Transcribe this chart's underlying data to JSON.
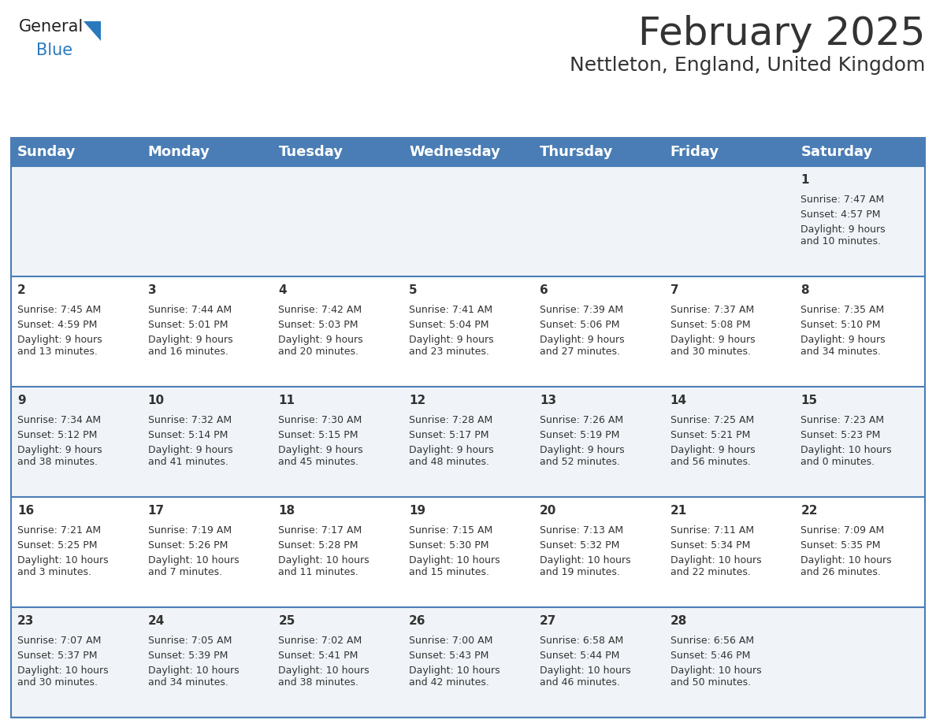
{
  "title": "February 2025",
  "subtitle": "Nettleton, England, United Kingdom",
  "header_bg": "#4A7DB5",
  "header_text_color": "#FFFFFF",
  "days_of_week": [
    "Sunday",
    "Monday",
    "Tuesday",
    "Wednesday",
    "Thursday",
    "Friday",
    "Saturday"
  ],
  "bg_color": "#FFFFFF",
  "row_alt_bg": "#F0F4F8",
  "border_color": "#4A7DB5",
  "text_color": "#333333",
  "num_weeks": 5,
  "weeks": [
    [
      {
        "day": "",
        "sunrise": "",
        "sunset": "",
        "daylight": ""
      },
      {
        "day": "",
        "sunrise": "",
        "sunset": "",
        "daylight": ""
      },
      {
        "day": "",
        "sunrise": "",
        "sunset": "",
        "daylight": ""
      },
      {
        "day": "",
        "sunrise": "",
        "sunset": "",
        "daylight": ""
      },
      {
        "day": "",
        "sunrise": "",
        "sunset": "",
        "daylight": ""
      },
      {
        "day": "",
        "sunrise": "",
        "sunset": "",
        "daylight": ""
      },
      {
        "day": "1",
        "sunrise": "7:47 AM",
        "sunset": "4:57 PM",
        "daylight": "9 hours\nand 10 minutes."
      }
    ],
    [
      {
        "day": "2",
        "sunrise": "7:45 AM",
        "sunset": "4:59 PM",
        "daylight": "9 hours\nand 13 minutes."
      },
      {
        "day": "3",
        "sunrise": "7:44 AM",
        "sunset": "5:01 PM",
        "daylight": "9 hours\nand 16 minutes."
      },
      {
        "day": "4",
        "sunrise": "7:42 AM",
        "sunset": "5:03 PM",
        "daylight": "9 hours\nand 20 minutes."
      },
      {
        "day": "5",
        "sunrise": "7:41 AM",
        "sunset": "5:04 PM",
        "daylight": "9 hours\nand 23 minutes."
      },
      {
        "day": "6",
        "sunrise": "7:39 AM",
        "sunset": "5:06 PM",
        "daylight": "9 hours\nand 27 minutes."
      },
      {
        "day": "7",
        "sunrise": "7:37 AM",
        "sunset": "5:08 PM",
        "daylight": "9 hours\nand 30 minutes."
      },
      {
        "day": "8",
        "sunrise": "7:35 AM",
        "sunset": "5:10 PM",
        "daylight": "9 hours\nand 34 minutes."
      }
    ],
    [
      {
        "day": "9",
        "sunrise": "7:34 AM",
        "sunset": "5:12 PM",
        "daylight": "9 hours\nand 38 minutes."
      },
      {
        "day": "10",
        "sunrise": "7:32 AM",
        "sunset": "5:14 PM",
        "daylight": "9 hours\nand 41 minutes."
      },
      {
        "day": "11",
        "sunrise": "7:30 AM",
        "sunset": "5:15 PM",
        "daylight": "9 hours\nand 45 minutes."
      },
      {
        "day": "12",
        "sunrise": "7:28 AM",
        "sunset": "5:17 PM",
        "daylight": "9 hours\nand 48 minutes."
      },
      {
        "day": "13",
        "sunrise": "7:26 AM",
        "sunset": "5:19 PM",
        "daylight": "9 hours\nand 52 minutes."
      },
      {
        "day": "14",
        "sunrise": "7:25 AM",
        "sunset": "5:21 PM",
        "daylight": "9 hours\nand 56 minutes."
      },
      {
        "day": "15",
        "sunrise": "7:23 AM",
        "sunset": "5:23 PM",
        "daylight": "10 hours\nand 0 minutes."
      }
    ],
    [
      {
        "day": "16",
        "sunrise": "7:21 AM",
        "sunset": "5:25 PM",
        "daylight": "10 hours\nand 3 minutes."
      },
      {
        "day": "17",
        "sunrise": "7:19 AM",
        "sunset": "5:26 PM",
        "daylight": "10 hours\nand 7 minutes."
      },
      {
        "day": "18",
        "sunrise": "7:17 AM",
        "sunset": "5:28 PM",
        "daylight": "10 hours\nand 11 minutes."
      },
      {
        "day": "19",
        "sunrise": "7:15 AM",
        "sunset": "5:30 PM",
        "daylight": "10 hours\nand 15 minutes."
      },
      {
        "day": "20",
        "sunrise": "7:13 AM",
        "sunset": "5:32 PM",
        "daylight": "10 hours\nand 19 minutes."
      },
      {
        "day": "21",
        "sunrise": "7:11 AM",
        "sunset": "5:34 PM",
        "daylight": "10 hours\nand 22 minutes."
      },
      {
        "day": "22",
        "sunrise": "7:09 AM",
        "sunset": "5:35 PM",
        "daylight": "10 hours\nand 26 minutes."
      }
    ],
    [
      {
        "day": "23",
        "sunrise": "7:07 AM",
        "sunset": "5:37 PM",
        "daylight": "10 hours\nand 30 minutes."
      },
      {
        "day": "24",
        "sunrise": "7:05 AM",
        "sunset": "5:39 PM",
        "daylight": "10 hours\nand 34 minutes."
      },
      {
        "day": "25",
        "sunrise": "7:02 AM",
        "sunset": "5:41 PM",
        "daylight": "10 hours\nand 38 minutes."
      },
      {
        "day": "26",
        "sunrise": "7:00 AM",
        "sunset": "5:43 PM",
        "daylight": "10 hours\nand 42 minutes."
      },
      {
        "day": "27",
        "sunrise": "6:58 AM",
        "sunset": "5:44 PM",
        "daylight": "10 hours\nand 46 minutes."
      },
      {
        "day": "28",
        "sunrise": "6:56 AM",
        "sunset": "5:46 PM",
        "daylight": "10 hours\nand 50 minutes."
      },
      {
        "day": "",
        "sunrise": "",
        "sunset": "",
        "daylight": ""
      }
    ]
  ],
  "fig_width": 11.88,
  "fig_height": 9.18,
  "dpi": 100,
  "title_fontsize": 36,
  "subtitle_fontsize": 18,
  "header_fontsize": 13,
  "day_num_fontsize": 11,
  "cell_fontsize": 9
}
